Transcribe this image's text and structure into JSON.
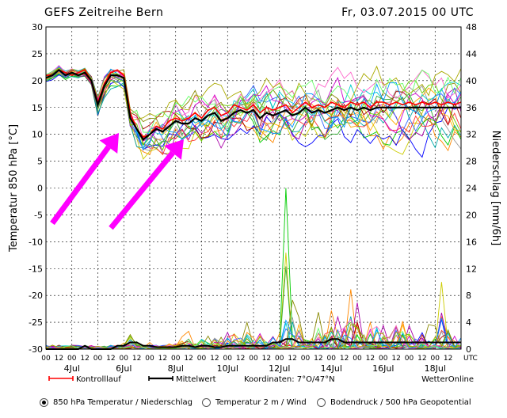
{
  "header": {
    "title": "GEFS Zeitreihe Bern",
    "run": "Fr, 03.07.2015 00 UTC"
  },
  "chart_data": {
    "type": "line",
    "ylabel_left": "Temperatur 850 hPa [°C]",
    "ylabel_right": "Niederschlag [mm/6h]",
    "ylim_left": [
      -30,
      30
    ],
    "ylim_right": [
      0,
      48
    ],
    "yticks_left": [
      "30",
      "25",
      "20",
      "15",
      "10",
      "5",
      "0",
      "-5",
      "-10",
      "-15",
      "-20",
      "-25",
      "-30"
    ],
    "yticks_right": [
      "48",
      "44",
      "40",
      "36",
      "32",
      "28",
      "24",
      "20",
      "16",
      "12",
      "8",
      "4",
      "0"
    ],
    "hour_labels": [
      "00",
      "12"
    ],
    "utc_label": "UTC",
    "date_labels": [
      "4Jul",
      "6Jul",
      "8Jul",
      "10Jul",
      "12Jul",
      "14Jul",
      "16Jul",
      "18Jul"
    ],
    "x_range_hours": [
      0,
      384
    ],
    "legend": {
      "control": "Kontrolllauf",
      "mean": "Mittelwert",
      "coordinates": "Koordinaten:  7°O/47°N",
      "source": "WetterOnline"
    },
    "mean_temperature": [
      20.5,
      21,
      22,
      21,
      21.5,
      21,
      21.5,
      20,
      15.5,
      19,
      21,
      21,
      20.5,
      13,
      11,
      9,
      10,
      11,
      10.5,
      11.5,
      12.5,
      12,
      12,
      13,
      12.5,
      13.5,
      14,
      12.5,
      13,
      14,
      14.5,
      14,
      14.5,
      13,
      14,
      13.5,
      14,
      14.5,
      13.5,
      14,
      15,
      14,
      14.5,
      14,
      14.5,
      15,
      14.5,
      15,
      14.5,
      15,
      14.5,
      15,
      15,
      15,
      15,
      15,
      15,
      15,
      15,
      15,
      15,
      15,
      15,
      15,
      15
    ],
    "control_temperature": [
      21,
      21,
      22,
      21.5,
      21,
      21.5,
      22,
      20,
      16,
      19.5,
      21.5,
      22,
      21,
      14,
      11,
      9.5,
      10,
      11.5,
      11,
      12.5,
      13,
      12.5,
      13,
      14,
      13,
      14.5,
      15,
      13.5,
      14,
      15.5,
      15,
      14.5,
      15.5,
      14,
      15,
      14.5,
      15,
      15.5,
      14,
      15,
      16,
      15,
      15.5,
      15,
      16,
      15.5,
      15,
      16,
      15.5,
      16,
      15,
      16,
      16,
      15.5,
      16,
      15.5,
      16,
      15.5,
      16,
      15.5,
      16,
      15.5,
      16,
      15.5,
      16
    ],
    "precip_mean_mm": [
      0,
      0,
      0,
      0,
      0,
      0,
      0.5,
      0,
      0,
      0,
      0,
      0.5,
      0.5,
      1,
      1,
      0.5,
      0.5,
      0.3,
      0.3,
      0.3,
      0.3,
      0.5,
      0.5,
      0.3,
      0.5,
      0.5,
      0.3,
      0.3,
      0.5,
      0.5,
      0.5,
      0.5,
      0.5,
      0.5,
      0.5,
      1,
      1,
      1.5,
      1.5,
      1,
      1,
      1,
      1,
      1,
      1.5,
      1.5,
      1,
      1,
      1,
      1,
      1,
      1,
      1,
      1,
      1,
      1,
      1,
      1,
      1,
      1,
      1,
      1,
      1,
      1,
      1
    ],
    "precip_max_mm": [
      0.3,
      0.3,
      0.5,
      0.3,
      0.5,
      0.3,
      0.5,
      0.3,
      0.5,
      0.5,
      0.3,
      1,
      1,
      4,
      2,
      1,
      1,
      0.5,
      0.5,
      1,
      1,
      2,
      3,
      1,
      4,
      2,
      3,
      2,
      3,
      4,
      3,
      5,
      2,
      4,
      2,
      3,
      3,
      24,
      8,
      5,
      3,
      2,
      6,
      4,
      6,
      5,
      6,
      9,
      7,
      3,
      5,
      8,
      4,
      3,
      6,
      5,
      4,
      3,
      5,
      4,
      4,
      10,
      5,
      4,
      3
    ],
    "ensemble_count": 20
  },
  "annotations": {
    "arrow_color": "#ff00ff",
    "arrow_count": 2
  },
  "options": {
    "temp_850": "850 hPa Temperatur / Niederschlag",
    "temp_2m": "Temperatur 2 m / Wind",
    "pressure": "Bodendruck / 500 hPa Geopotential",
    "selected": "temp_850"
  },
  "colors": {
    "control": "#ff0000",
    "mean": "#000000",
    "grid": "#000000",
    "ensemble": [
      "#ff8800",
      "#00cc00",
      "#0000ff",
      "#cccc00",
      "#00aaaa",
      "#aa00aa",
      "#ff3333",
      "#33aa33",
      "#3366ff",
      "#999999",
      "#ffaa00",
      "#66cc00",
      "#aa0000",
      "#00cccc",
      "#cc00cc",
      "#888800",
      "#0099ff",
      "#ff66cc",
      "#66ff66",
      "#aaaa00"
    ]
  }
}
